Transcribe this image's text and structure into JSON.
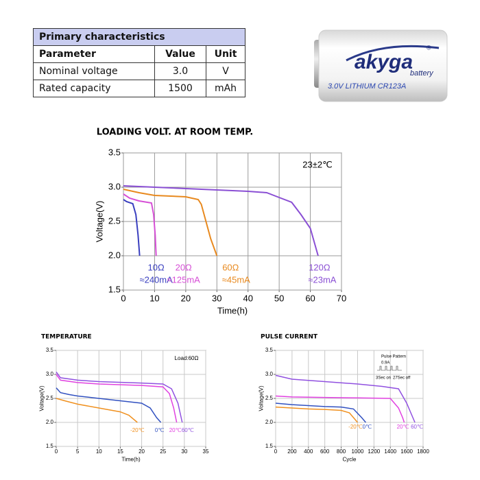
{
  "table": {
    "title": "Primary characteristics",
    "header": [
      "Parameter",
      "Value",
      "Unit"
    ],
    "rows": [
      [
        "Nominal voltage",
        "3.0",
        "V"
      ],
      [
        "Rated capacity",
        "1500",
        "mAh"
      ]
    ]
  },
  "product_image": {
    "brand": "akyga",
    "sub": "battery",
    "mark": "®",
    "label": "3.0V LITHIUM CR123A"
  },
  "chart_data": [
    {
      "type": "line",
      "title": "LOADING VOLT. AT ROOM TEMP.",
      "xlabel": "Time(h)",
      "ylabel": "Voltage(V)",
      "annotation": "23±2℃",
      "xlim": [
        0,
        70
      ],
      "xticks": [
        0,
        10,
        20,
        30,
        40,
        50,
        60,
        70
      ],
      "ylim": [
        1.5,
        3.5
      ],
      "yticks": [
        1.5,
        {
          "value": 2,
          "label": "2.0"
        },
        2.5,
        {
          "value": 3,
          "label": "3.0"
        },
        3.5
      ],
      "grid": true,
      "series": [
        {
          "name": "10Ω",
          "current": "≈240mA",
          "color": "#3a3fbf",
          "x": [
            0,
            1,
            3,
            4,
            4.7,
            5.2
          ],
          "values": [
            2.82,
            2.79,
            2.76,
            2.6,
            2.3,
            2.0
          ]
        },
        {
          "name": "20Ω",
          "current": "≈125mA",
          "color": "#d64fd6",
          "x": [
            0,
            2,
            5,
            9,
            9.7,
            10.2,
            10.5
          ],
          "values": [
            2.9,
            2.84,
            2.8,
            2.77,
            2.6,
            2.3,
            2.0
          ]
        },
        {
          "name": "60Ω",
          "current": "≈45mA",
          "color": "#e8891e",
          "x": [
            0,
            5,
            10,
            20,
            24,
            25,
            26.5,
            28,
            30
          ],
          "values": [
            2.97,
            2.92,
            2.88,
            2.86,
            2.82,
            2.75,
            2.5,
            2.25,
            2.0
          ]
        },
        {
          "name": "120Ω",
          "current": "≈23mA",
          "color": "#8a4fd4",
          "x": [
            0,
            10,
            20,
            30,
            40,
            46,
            50,
            54,
            57,
            60,
            62.5
          ],
          "values": [
            3.02,
            3.0,
            2.98,
            2.96,
            2.94,
            2.92,
            2.85,
            2.78,
            2.6,
            2.4,
            2.0
          ]
        }
      ]
    },
    {
      "type": "line",
      "title": "TEMPERATURE",
      "xlabel": "Time(h)",
      "ylabel": "Voltage(V)",
      "annotation": "Load:60Ω",
      "xlim": [
        0,
        35
      ],
      "xticks": [
        0,
        5,
        10,
        15,
        20,
        25,
        30,
        35
      ],
      "ylim": [
        1.5,
        3.5
      ],
      "yticks": [
        1.5,
        {
          "value": 2,
          "label": "2.0"
        },
        2.5,
        {
          "value": 3,
          "label": "3.0"
        },
        3.5
      ],
      "grid": true,
      "series": [
        {
          "name": "-20℃",
          "color": "#f0901e",
          "x": [
            0,
            2,
            5,
            10,
            15,
            17,
            19
          ],
          "values": [
            2.5,
            2.45,
            2.38,
            2.3,
            2.22,
            2.15,
            2.0
          ]
        },
        {
          "name": "0℃",
          "color": "#3050c0",
          "x": [
            0,
            1,
            3,
            5,
            10,
            15,
            20,
            22,
            23.5,
            24.5
          ],
          "values": [
            2.72,
            2.62,
            2.58,
            2.55,
            2.5,
            2.45,
            2.4,
            2.3,
            2.1,
            2.0
          ]
        },
        {
          "name": "20℃",
          "color": "#e040e0",
          "x": [
            0,
            1,
            5,
            10,
            20,
            25,
            26.5,
            27.5,
            28.2
          ],
          "values": [
            3.0,
            2.88,
            2.83,
            2.8,
            2.77,
            2.74,
            2.6,
            2.3,
            2.0
          ]
        },
        {
          "name": "60℃",
          "color": "#9050e0",
          "x": [
            0,
            1,
            5,
            10,
            20,
            25,
            27,
            28.5,
            29.5
          ],
          "values": [
            3.05,
            2.93,
            2.88,
            2.85,
            2.82,
            2.8,
            2.7,
            2.4,
            2.0
          ]
        }
      ]
    },
    {
      "type": "line",
      "title": "PULSE CURRENT",
      "xlabel": "Cycle",
      "ylabel": "Voltage(V)",
      "pulse_pattern": {
        "title": "Pulse Pattern",
        "current": "0.9A",
        "on": "3Sec on",
        "off": "27Sec off"
      },
      "xlim": [
        0,
        1800
      ],
      "xticks": [
        0,
        200,
        400,
        600,
        800,
        1000,
        1200,
        1400,
        1600,
        1800
      ],
      "ylim": [
        1.5,
        3.5
      ],
      "yticks": [
        1.5,
        {
          "value": 2,
          "label": "2.0"
        },
        2.5,
        {
          "value": 3,
          "label": "3.0"
        },
        3.5
      ],
      "grid": true,
      "series": [
        {
          "name": "-20℃",
          "color": "#f0901e",
          "x": [
            0,
            200,
            400,
            600,
            800,
            900,
            950,
            1000
          ],
          "values": [
            2.32,
            2.3,
            2.28,
            2.27,
            2.25,
            2.2,
            2.1,
            2.0
          ]
        },
        {
          "name": "0℃",
          "color": "#3050c0",
          "x": [
            0,
            200,
            400,
            600,
            800,
            950,
            1050,
            1100
          ],
          "values": [
            2.4,
            2.37,
            2.35,
            2.33,
            2.32,
            2.28,
            2.1,
            2.0
          ]
        },
        {
          "name": "20℃",
          "color": "#e040e0",
          "x": [
            0,
            200,
            600,
            1000,
            1400,
            1500,
            1550,
            1570
          ],
          "values": [
            2.55,
            2.53,
            2.52,
            2.51,
            2.5,
            2.3,
            2.1,
            2.0
          ]
        },
        {
          "name": "60℃",
          "color": "#9050e0",
          "x": [
            0,
            200,
            600,
            1000,
            1300,
            1500,
            1600,
            1650,
            1700
          ],
          "values": [
            2.98,
            2.9,
            2.85,
            2.8,
            2.75,
            2.7,
            2.4,
            2.2,
            2.0
          ]
        }
      ]
    }
  ]
}
